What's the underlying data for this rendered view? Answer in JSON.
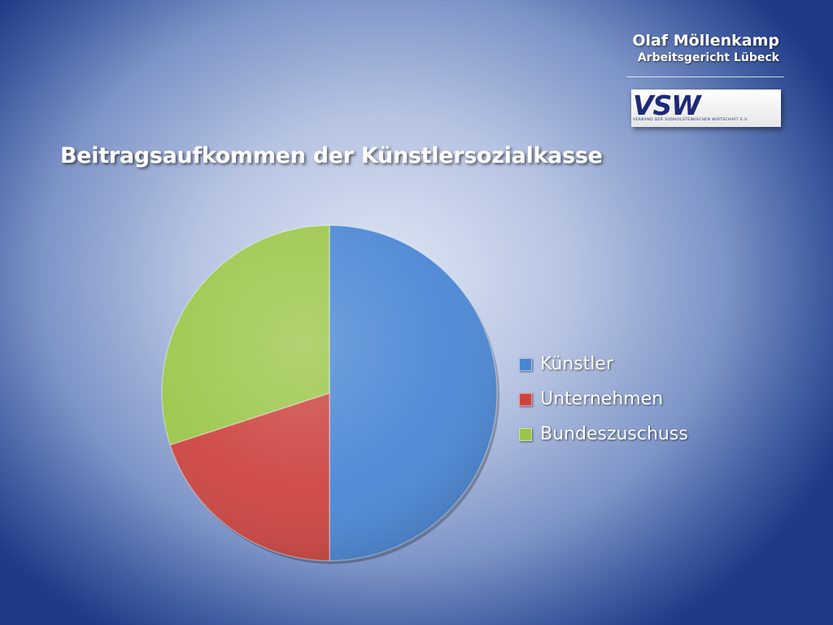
{
  "header": {
    "author": "Olaf Möllenkamp",
    "organization": "Arbeitsgericht Lübeck",
    "logo": {
      "letters": "VSW",
      "caption": "VERBAND DER SÜDHOLSTEINISCHEN WIRTSCHAFT E.V.",
      "color": "#1e2a78"
    }
  },
  "chart_data": {
    "type": "pie",
    "title": "Beitragsaufkommen der Künstlersozialkasse",
    "legend_position": "right",
    "slices": [
      {
        "label": "Künstler",
        "value": 50,
        "color": "#4a86d4"
      },
      {
        "label": "Unternehmen",
        "value": 20,
        "color": "#cc4440"
      },
      {
        "label": "Bundeszuschuss",
        "value": 30,
        "color": "#9bc64a"
      }
    ]
  }
}
